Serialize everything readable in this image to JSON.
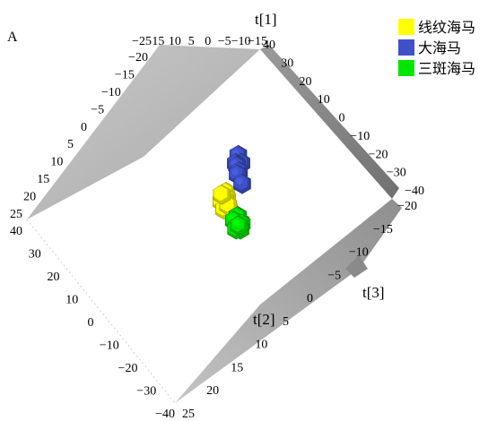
{
  "chart_data": {
    "type": "scatter",
    "projection": "3d",
    "panel_label": "A",
    "axes": {
      "t1": {
        "label": "t[1]",
        "range": [
          -40,
          40
        ],
        "ticks": [
          "40",
          "30",
          "20",
          "10",
          "0",
          "−10",
          "−20",
          "−30",
          "−40"
        ]
      },
      "t2": {
        "label": "t[2]",
        "range": [
          -40,
          40
        ],
        "ticks": [
          "40",
          "30",
          "20",
          "10",
          "0",
          "−10",
          "−20",
          "−30",
          "−40"
        ]
      },
      "t3": {
        "label": "t[3]",
        "range": [
          -25,
          25
        ],
        "ticks": [
          "25",
          "20",
          "15",
          "10",
          "5",
          "0",
          "−5",
          "−10",
          "−15",
          "−20"
        ]
      }
    },
    "top_ticks": [
      "−25",
      "15",
      "10",
      "5",
      "0",
      "−5",
      "−10",
      "−15"
    ],
    "left_ticks": [
      "−20",
      "−15",
      "−10",
      "−5",
      "0",
      "5",
      "10",
      "15",
      "20",
      "25"
    ],
    "legend": {
      "position": "top-right",
      "entries": [
        "线纹海马",
        "大海马",
        "三斑海马"
      ]
    },
    "series": [
      {
        "name": "线纹海马",
        "color": "#ffff00",
        "points": [
          {
            "t1": -22,
            "t2": 4,
            "t3": 1
          },
          {
            "t1": -24,
            "t2": 2,
            "t3": 2
          },
          {
            "t1": -21,
            "t2": 0,
            "t3": 0
          },
          {
            "t1": -25,
            "t2": -1,
            "t3": -1
          },
          {
            "t1": -20,
            "t2": -3,
            "t3": 2
          },
          {
            "t1": -23,
            "t2": -4,
            "t3": 0
          },
          {
            "t1": -17,
            "t2": -2,
            "t3": 1
          },
          {
            "t1": -19,
            "t2": 1,
            "t3": -2
          }
        ]
      },
      {
        "name": "大海马",
        "color": "#3f51c8",
        "points": [
          {
            "t1": 10,
            "t2": 18,
            "t3": 1
          },
          {
            "t1": 13,
            "t2": 15,
            "t3": 2
          },
          {
            "t1": 8,
            "t2": 14,
            "t3": 0
          },
          {
            "t1": 15,
            "t2": 12,
            "t3": -1
          },
          {
            "t1": 11,
            "t2": 11,
            "t3": 1
          },
          {
            "t1": 12,
            "t2": 9,
            "t3": 0
          },
          {
            "t1": 14,
            "t2": 6,
            "t3": 2
          }
        ]
      },
      {
        "name": "三斑海马",
        "color": "#00e600",
        "points": [
          {
            "t1": 6,
            "t2": -8,
            "t3": 1
          },
          {
            "t1": 8,
            "t2": -10,
            "t3": 2
          },
          {
            "t1": 10,
            "t2": -9,
            "t3": 0
          },
          {
            "t1": 5,
            "t2": -11,
            "t3": -1
          },
          {
            "t1": 9,
            "t2": -12,
            "t3": 1
          },
          {
            "t1": 11,
            "t2": -11,
            "t3": 2
          },
          {
            "t1": 7,
            "t2": -13,
            "t3": 0
          },
          {
            "t1": 12,
            "t2": -14,
            "t3": 1
          },
          {
            "t1": 10,
            "t2": -15,
            "t3": -1
          },
          {
            "t1": 13,
            "t2": -13,
            "t3": 0
          }
        ]
      }
    ]
  }
}
